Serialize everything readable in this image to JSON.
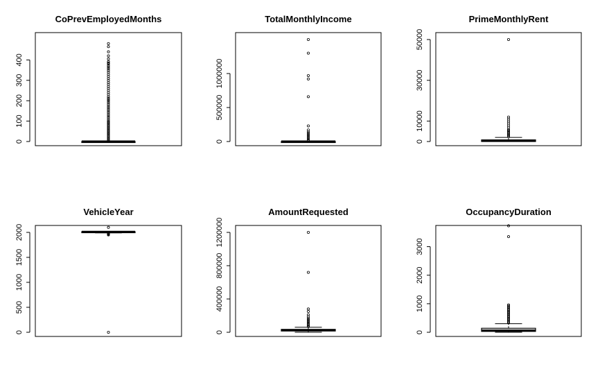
{
  "chart_data": [
    {
      "type": "boxplot",
      "title": "CoPrevEmployedMonths",
      "ylim": [
        0,
        500
      ],
      "yticks": [
        0,
        100,
        200,
        300,
        400
      ],
      "box": {
        "lower_whisker": 0,
        "q1": 0,
        "median": 0,
        "q3": 0,
        "upper_whisker": 0
      },
      "outliers": [
        480,
        465,
        440,
        420,
        405,
        392,
        385,
        380,
        372,
        365,
        357,
        349,
        340,
        330,
        320,
        310,
        300,
        290,
        280,
        270,
        260,
        250,
        240,
        230,
        220,
        212,
        205,
        198,
        190,
        182,
        174,
        166,
        158,
        150,
        142,
        134,
        126,
        118,
        110,
        102,
        96,
        90,
        84,
        78,
        72,
        66,
        60,
        54,
        48,
        42,
        36,
        30,
        24,
        18,
        12,
        6
      ]
    },
    {
      "type": "boxplot",
      "title": "TotalMonthlyIncome",
      "ylim": [
        0,
        1500000
      ],
      "yticks": [
        0,
        500000,
        1000000
      ],
      "box": {
        "lower_whisker": 0,
        "q1": 0,
        "median": 0,
        "q3": 0,
        "upper_whisker": 0
      },
      "outliers": [
        1500000,
        1300000,
        970000,
        920000,
        660000,
        230000,
        170000,
        140000,
        120000,
        100000,
        80000,
        60000,
        40000,
        20000
      ]
    },
    {
      "type": "boxplot",
      "title": "PrimeMonthlyRent",
      "ylim": [
        0,
        50000
      ],
      "yticks": [
        0,
        10000,
        30000,
        50000
      ],
      "box": {
        "lower_whisker": 0,
        "q1": 0,
        "median": 400,
        "q3": 800,
        "upper_whisker": 2000
      },
      "outliers": [
        50000,
        12000,
        11000,
        10000,
        9000,
        8000,
        7000,
        6000,
        5500,
        5000,
        4500,
        4000,
        3500,
        3000,
        2500
      ]
    },
    {
      "type": "boxplot",
      "title": "VehicleYear",
      "ylim": [
        0,
        2000
      ],
      "yticks": [
        0,
        500,
        1000,
        1500,
        2000
      ],
      "box": {
        "lower_whisker": 1990,
        "q1": 2005,
        "median": 2010,
        "q3": 2014,
        "upper_whisker": 2020
      },
      "outliers": [
        2100,
        1980,
        1970,
        1960,
        1950,
        0
      ]
    },
    {
      "type": "boxplot",
      "title": "AmountRequested",
      "ylim": [
        0,
        1200000
      ],
      "yticks": [
        0,
        400000,
        800000,
        1200000
      ],
      "box": {
        "lower_whisker": 0,
        "q1": 15000,
        "median": 25000,
        "q3": 35000,
        "upper_whisker": 60000
      },
      "outliers": [
        1200000,
        720000,
        280000,
        250000,
        210000,
        185000,
        165000,
        150000,
        135000,
        120000,
        105000,
        92000,
        80000,
        70000
      ]
    },
    {
      "type": "boxplot",
      "title": "OccupancyDuration",
      "ylim": [
        0,
        3500
      ],
      "yticks": [
        0,
        1000,
        2000,
        3000
      ],
      "box": {
        "lower_whisker": 0,
        "q1": 30,
        "median": 60,
        "q3": 140,
        "upper_whisker": 300
      },
      "outliers": [
        3730,
        3350,
        960,
        920,
        880,
        840,
        800,
        760,
        720,
        680,
        640,
        600,
        560,
        520,
        480,
        440,
        400,
        360,
        330
      ]
    }
  ]
}
